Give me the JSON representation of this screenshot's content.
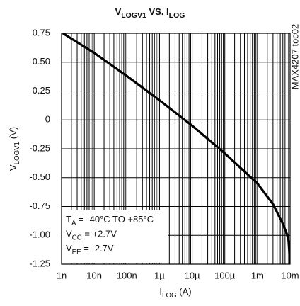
{
  "chart_data": {
    "type": "line",
    "title": [
      "V",
      "LOGV1",
      " VS. I",
      "LOG"
    ],
    "y_label": [
      "V",
      "LOGV1",
      " (V)"
    ],
    "x_label": [
      "I",
      "LOG",
      " (A)"
    ],
    "side_note": "MAX4207 toc02",
    "annotations": [
      [
        "T",
        "A",
        " = -40°C TO +85°C"
      ],
      [
        "V",
        "CC",
        " = +2.7V"
      ],
      [
        "V",
        "EE",
        " = -2.7V"
      ]
    ],
    "x_log": true,
    "grid": true,
    "xlim": [
      1e-09,
      0.01
    ],
    "ylim": [
      -1.25,
      0.75
    ],
    "xticks": [
      {
        "value": 1e-09,
        "label": "1n"
      },
      {
        "value": 1e-08,
        "label": "10n"
      },
      {
        "value": 1e-07,
        "label": "100n"
      },
      {
        "value": 1e-06,
        "label": "1µ"
      },
      {
        "value": 1e-05,
        "label": "10µ"
      },
      {
        "value": 0.0001,
        "label": "100µ"
      },
      {
        "value": 0.001,
        "label": "1m"
      },
      {
        "value": 0.01,
        "label": "10m"
      }
    ],
    "x_minor_ticks": [
      2e-09,
      3e-09,
      4e-09,
      5e-09,
      6e-09,
      7e-09,
      8e-09,
      9e-09,
      2e-08,
      3e-08,
      4e-08,
      5e-08,
      6e-08,
      7e-08,
      8e-08,
      9e-08,
      2e-07,
      3e-07,
      4e-07,
      5e-07,
      6e-07,
      7e-07,
      8e-07,
      9e-07,
      2e-06,
      3e-06,
      4e-06,
      5e-06,
      6e-06,
      7e-06,
      8e-06,
      9e-06,
      2e-05,
      3e-05,
      4e-05,
      5e-05,
      6e-05,
      7e-05,
      8e-05,
      9e-05,
      0.0002,
      0.0003,
      0.0004,
      0.0005,
      0.0006,
      0.0007,
      0.0008,
      0.0009,
      0.002,
      0.003,
      0.004,
      0.005,
      0.006,
      0.007,
      0.008,
      0.009
    ],
    "yticks": [
      {
        "value": 0.75,
        "label": "0.75"
      },
      {
        "value": 0.5,
        "label": "0.50"
      },
      {
        "value": 0.25,
        "label": "0.25"
      },
      0,
      -0.25,
      {
        "value": -0.5,
        "label": "-0.50"
      },
      -0.75,
      {
        "value": -1,
        "label": "-1.00"
      },
      -1.25
    ],
    "series": [
      {
        "color": "#000000",
        "x": [
          1.1e-09,
          1e-08,
          1e-07,
          1e-06,
          1e-05,
          0.0001,
          0.001,
          0.003,
          0.006,
          0.008,
          0.009,
          0.01
        ],
        "values": [
          0.75,
          0.58,
          0.38,
          0.17,
          -0.05,
          -0.29,
          -0.55,
          -0.73,
          -0.9,
          -0.99,
          -1.05,
          -1.25
        ]
      }
    ]
  }
}
